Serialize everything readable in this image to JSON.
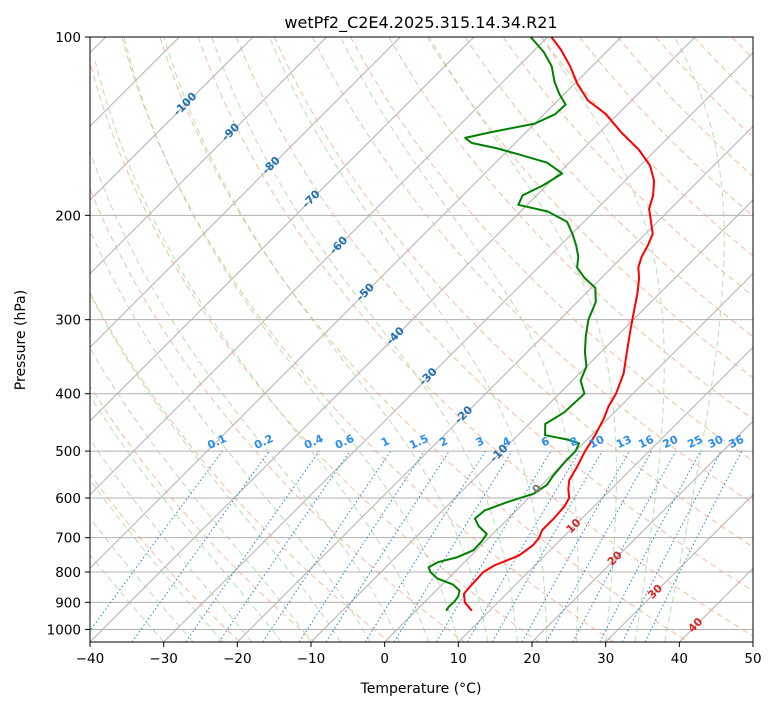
{
  "chart_data": {
    "type": "skew-t",
    "title": "wetPf2_C2E4.2025.315.14.34.R21",
    "xlabel": "Temperature (°C)",
    "ylabel": "Pressure (hPa)",
    "xlim": [
      -40,
      50
    ],
    "ylim": [
      1050,
      100
    ],
    "x_ticks": [
      -40,
      -30,
      -20,
      -10,
      0,
      10,
      20,
      30,
      40,
      50
    ],
    "y_ticks": [
      100,
      200,
      300,
      400,
      500,
      600,
      700,
      800,
      900,
      1000
    ],
    "grid": true,
    "series": [
      {
        "name": "temperature",
        "color": "#ff0000",
        "points": [
          [
            930,
            7.6
          ],
          [
            900,
            5.5
          ],
          [
            870,
            4.2
          ],
          [
            850,
            4.1
          ],
          [
            800,
            3.9
          ],
          [
            780,
            4.5
          ],
          [
            750,
            6.5
          ],
          [
            720,
            7.0
          ],
          [
            700,
            6.8
          ],
          [
            680,
            6.2
          ],
          [
            650,
            6.2
          ],
          [
            620,
            6.0
          ],
          [
            600,
            5.5
          ],
          [
            580,
            4.2
          ],
          [
            560,
            3.1
          ],
          [
            530,
            2.3
          ],
          [
            500,
            1.3
          ],
          [
            470,
            0.5
          ],
          [
            440,
            -0.6
          ],
          [
            420,
            -1.6
          ],
          [
            400,
            -2.3
          ],
          [
            370,
            -4.0
          ],
          [
            340,
            -6.5
          ],
          [
            310,
            -9.2
          ],
          [
            290,
            -11.1
          ],
          [
            270,
            -13.1
          ],
          [
            255,
            -14.9
          ],
          [
            245,
            -16.4
          ],
          [
            235,
            -17.4
          ],
          [
            225,
            -18.1
          ],
          [
            215,
            -19.0
          ],
          [
            205,
            -20.9
          ],
          [
            195,
            -22.9
          ],
          [
            185,
            -24.2
          ],
          [
            175,
            -26.0
          ],
          [
            165,
            -28.6
          ],
          [
            155,
            -32.3
          ],
          [
            145,
            -37.0
          ],
          [
            135,
            -41.6
          ],
          [
            128,
            -45.9
          ],
          [
            120,
            -49.6
          ],
          [
            112,
            -53.0
          ],
          [
            105,
            -56.5
          ],
          [
            100,
            -59.5
          ]
        ]
      },
      {
        "name": "dewpoint",
        "color": "#008000",
        "points": [
          [
            930,
            4.1
          ],
          [
            915,
            3.9
          ],
          [
            900,
            4.0
          ],
          [
            880,
            3.8
          ],
          [
            860,
            3.2
          ],
          [
            840,
            1.5
          ],
          [
            820,
            -1.5
          ],
          [
            800,
            -3.3
          ],
          [
            785,
            -4.2
          ],
          [
            770,
            -3.6
          ],
          [
            755,
            -1.6
          ],
          [
            735,
            -0.4
          ],
          [
            710,
            -0.5
          ],
          [
            690,
            -0.8
          ],
          [
            670,
            -2.9
          ],
          [
            650,
            -4.5
          ],
          [
            630,
            -4.3
          ],
          [
            610,
            -2.4
          ],
          [
            590,
            0.1
          ],
          [
            570,
            0.7
          ],
          [
            550,
            0.3
          ],
          [
            520,
            0.0
          ],
          [
            500,
            0.0
          ],
          [
            485,
            -0.6
          ],
          [
            478,
            -2.7
          ],
          [
            470,
            -6.3
          ],
          [
            450,
            -7.8
          ],
          [
            430,
            -6.8
          ],
          [
            400,
            -6.6
          ],
          [
            380,
            -8.9
          ],
          [
            360,
            -10.0
          ],
          [
            340,
            -12.2
          ],
          [
            320,
            -14.2
          ],
          [
            300,
            -16.1
          ],
          [
            280,
            -17.5
          ],
          [
            265,
            -19.5
          ],
          [
            255,
            -22.3
          ],
          [
            245,
            -24.7
          ],
          [
            235,
            -26.0
          ],
          [
            225,
            -27.8
          ],
          [
            215,
            -29.9
          ],
          [
            205,
            -32.3
          ],
          [
            197,
            -36.3
          ],
          [
            192,
            -41.2
          ],
          [
            185,
            -41.9
          ],
          [
            178,
            -40.5
          ],
          [
            170,
            -39.5
          ],
          [
            163,
            -43.0
          ],
          [
            158,
            -47.8
          ],
          [
            154,
            -51.9
          ],
          [
            151,
            -55.9
          ],
          [
            148,
            -57.5
          ],
          [
            145,
            -55.0
          ],
          [
            140,
            -50.0
          ],
          [
            135,
            -48.5
          ],
          [
            130,
            -48.4
          ],
          [
            125,
            -50.6
          ],
          [
            119,
            -53.0
          ],
          [
            112,
            -55.5
          ],
          [
            106,
            -58.5
          ],
          [
            100,
            -62.3
          ]
        ]
      }
    ],
    "annotations": {
      "dry_adiabat_labels": [
        "-100",
        "-90",
        "-80",
        "-70",
        "-60",
        "-50",
        "-40",
        "-30",
        "-20",
        "-10",
        "0",
        "10",
        "20",
        "30",
        "40"
      ],
      "mixing_ratio_labels": [
        "0.1",
        "0.2",
        "0.4",
        "0.6",
        "1",
        "1.5",
        "2",
        "3",
        "4",
        "6",
        "8",
        "10",
        "13",
        "16",
        "20",
        "25",
        "30",
        "36"
      ]
    },
    "colors": {
      "isotherm": "#b0b0b0",
      "dry_adiabat": "#f4a582",
      "moist_adiabat": "#9fd39f",
      "mixing_ratio": "#2a7fd4",
      "dry_label_cold": "#1f6fb0",
      "dry_label_warm": "#d62728",
      "mixing_label": "#2a8cf0"
    }
  }
}
